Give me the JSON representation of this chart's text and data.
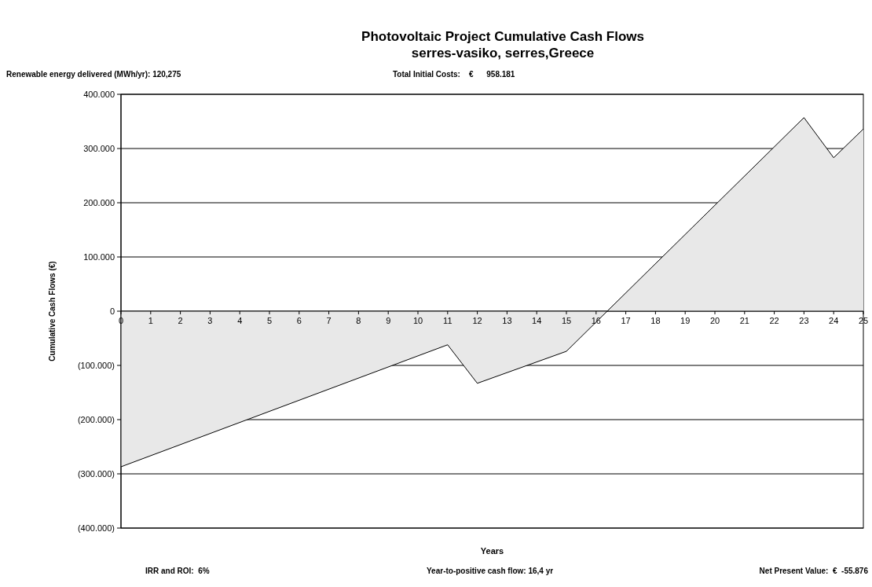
{
  "chart_data": {
    "type": "area",
    "title": "Photovoltaic Project Cumulative Cash Flows",
    "subtitle": "serres-vasiko, serres,Greece",
    "xlabel": "Years",
    "ylabel": "Cumulative Cash Flows (€)",
    "annotations": [
      "Renewable energy delivered (MWh/yr): 120,275",
      "Total Initial Costs:    €      958.181",
      "IRR and ROI:  6%",
      "Year-to-positive cash flow: 16,4 yr",
      "Net Present Value:  €  -55.876"
    ],
    "series": [
      {
        "color": "#e8e8e8",
        "x": [
          0,
          11,
          12,
          15,
          23,
          24,
          25
        ],
        "values": [
          -287000,
          -62000,
          -133000,
          -74000,
          357000,
          283000,
          336000
        ]
      }
    ],
    "xlim": [
      0,
      25
    ],
    "xticks": [
      0,
      1,
      2,
      3,
      4,
      5,
      6,
      7,
      8,
      9,
      10,
      11,
      12,
      13,
      14,
      15,
      16,
      17,
      18,
      19,
      20,
      21,
      22,
      23,
      24,
      25
    ],
    "ylim": [
      -400000,
      400000
    ],
    "yticks": [
      {
        "value": -400000,
        "label": "(400.000)"
      },
      {
        "value": -300000,
        "label": "(300.000)"
      },
      {
        "value": -200000,
        "label": "(200.000)"
      },
      {
        "value": -100000,
        "label": "(100.000)"
      },
      0,
      {
        "value": 100000,
        "label": "100.000"
      },
      {
        "value": 200000,
        "label": "200.000"
      },
      {
        "value": 300000,
        "label": "300.000"
      },
      {
        "value": 400000,
        "label": "400.000"
      }
    ],
    "grid": "y"
  }
}
